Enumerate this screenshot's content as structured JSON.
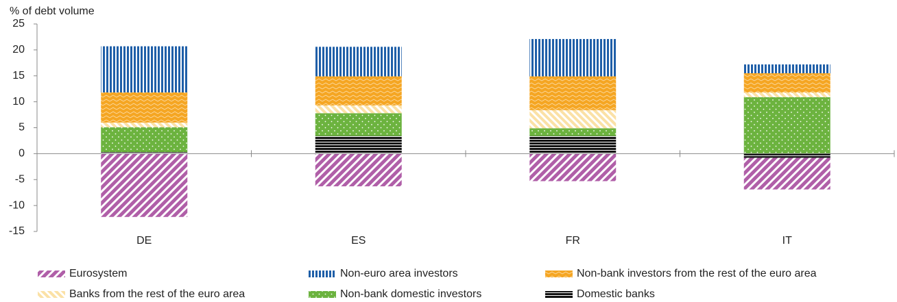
{
  "chart_data": {
    "type": "bar",
    "stacked": true,
    "y_label": "% of debt volume",
    "categories": [
      "DE",
      "ES",
      "FR",
      "IT"
    ],
    "series": [
      {
        "name": "Eurosystem",
        "color": "#b05fa8",
        "values": [
          -12.2,
          -6.3,
          -5.3,
          -6.1
        ]
      },
      {
        "name": "Non-euro area investors",
        "color": "#1f5fa8",
        "values": [
          8.9,
          5.7,
          7.2,
          1.7
        ]
      },
      {
        "name": "Non-bank investors from the rest of the euro area",
        "color": "#f5a623",
        "values": [
          5.8,
          5.6,
          6.5,
          3.7
        ]
      },
      {
        "name": "Banks from the rest of the euro area",
        "color": "#fbe1a6",
        "values": [
          0.9,
          1.5,
          3.5,
          0.9
        ]
      },
      {
        "name": "Non-bank domestic investors",
        "color": "#6cb33f",
        "values": [
          4.8,
          4.4,
          1.5,
          10.9
        ]
      },
      {
        "name": "Domestic banks",
        "color": "#111111",
        "values": [
          0.3,
          3.4,
          3.4,
          -0.8
        ]
      }
    ],
    "ylim": [
      -15,
      25
    ],
    "yticks": [
      -15,
      -10,
      -5,
      0,
      5,
      10,
      15,
      20,
      25
    ],
    "grid": false
  }
}
